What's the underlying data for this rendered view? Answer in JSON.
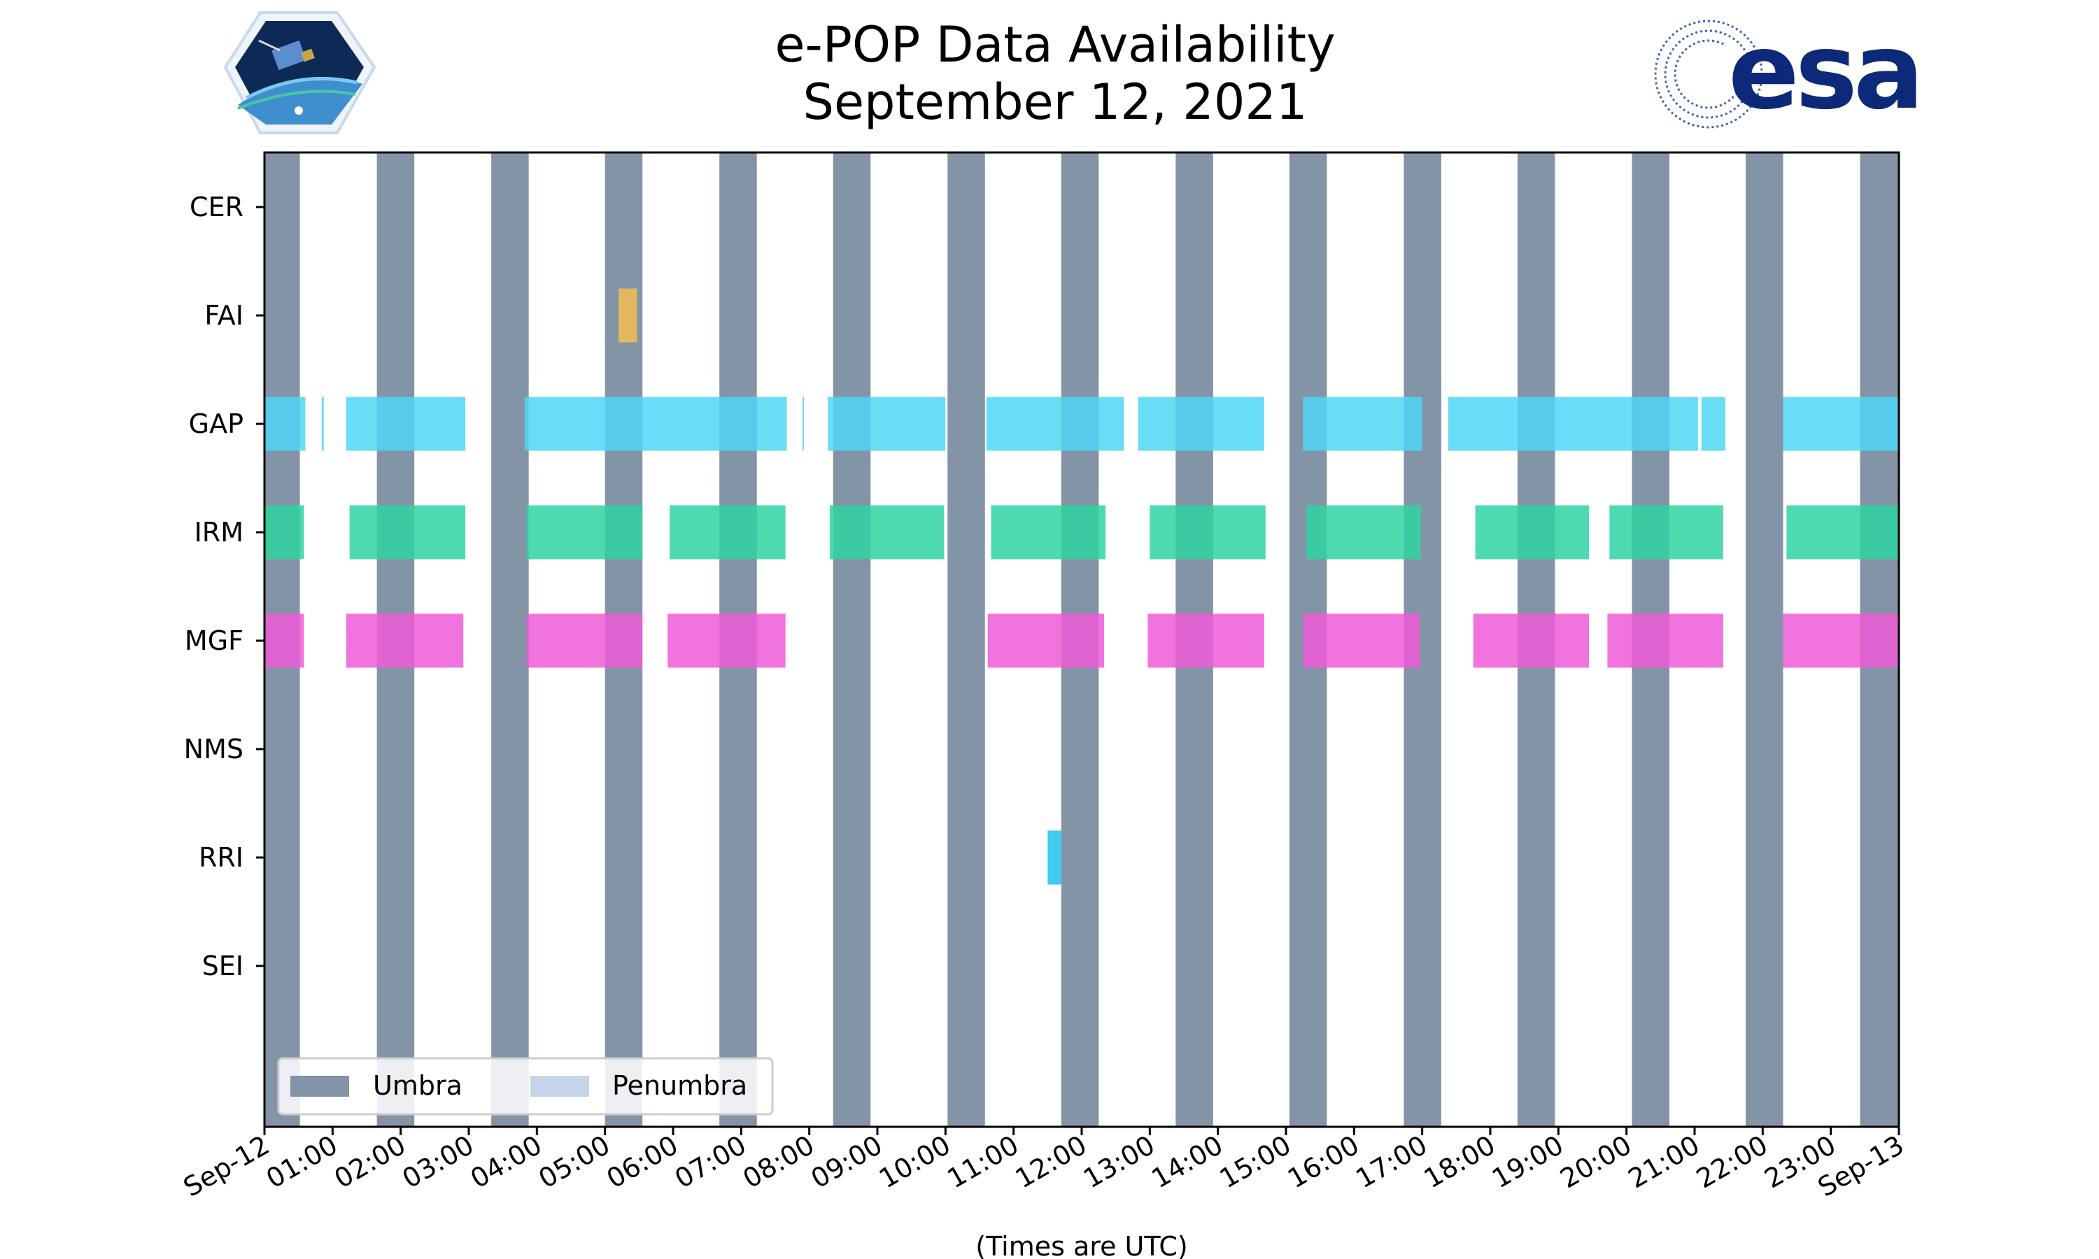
{
  "chart_data": {
    "type": "timeline",
    "title": "e-POP Data Availability",
    "subtitle": "September 12, 2021",
    "xlabel": "(Times are UTC)",
    "x_unit": "hours UTC",
    "xlim": [
      0,
      24
    ],
    "x_tick_labels": [
      "Sep-12",
      "01:00",
      "02:00",
      "03:00",
      "04:00",
      "05:00",
      "06:00",
      "07:00",
      "08:00",
      "09:00",
      "10:00",
      "11:00",
      "12:00",
      "13:00",
      "14:00",
      "15:00",
      "16:00",
      "17:00",
      "18:00",
      "19:00",
      "20:00",
      "21:00",
      "22:00",
      "23:00",
      "Sep-13"
    ],
    "instruments": [
      "CER",
      "FAI",
      "GAP",
      "IRM",
      "MGF",
      "NMS",
      "RRI",
      "SEI"
    ],
    "legend": {
      "placement": "lower-left",
      "entries": [
        {
          "label": "Umbra",
          "color": "#8494a7"
        },
        {
          "label": "Penumbra",
          "color": "#c5d4e6"
        }
      ]
    },
    "umbra_intervals": [
      [
        0.0,
        0.52
      ],
      [
        1.65,
        2.2
      ],
      [
        3.33,
        3.88
      ],
      [
        5.0,
        5.55
      ],
      [
        6.68,
        7.23
      ],
      [
        8.35,
        8.9
      ],
      [
        10.03,
        10.58
      ],
      [
        11.7,
        12.25
      ],
      [
        13.38,
        13.93
      ],
      [
        15.05,
        15.6
      ],
      [
        16.73,
        17.28
      ],
      [
        18.4,
        18.95
      ],
      [
        20.08,
        20.63
      ],
      [
        21.75,
        22.3
      ],
      [
        23.43,
        24.0
      ]
    ],
    "series": [
      {
        "name": "CER",
        "color": "#f7b731",
        "intervals": []
      },
      {
        "name": "FAI",
        "color": "#f2bd50",
        "intervals": [
          [
            5.2,
            5.47
          ]
        ]
      },
      {
        "name": "GAP",
        "color": "#4fd6f6",
        "intervals": [
          [
            0.0,
            0.6
          ],
          [
            0.84,
            0.87
          ],
          [
            1.2,
            2.95
          ],
          [
            3.82,
            7.67
          ],
          [
            7.9,
            7.92
          ],
          [
            8.27,
            10.0
          ],
          [
            10.6,
            12.62
          ],
          [
            12.83,
            14.68
          ],
          [
            15.25,
            17.0
          ],
          [
            17.38,
            21.05
          ],
          [
            21.1,
            21.45
          ],
          [
            22.3,
            24.0
          ]
        ]
      },
      {
        "name": "IRM",
        "color": "#2ed3a0",
        "intervals": [
          [
            0.0,
            0.58
          ],
          [
            1.25,
            2.95
          ],
          [
            3.85,
            5.55
          ],
          [
            5.95,
            7.65
          ],
          [
            8.3,
            9.98
          ],
          [
            10.67,
            12.35
          ],
          [
            13.0,
            14.7
          ],
          [
            15.3,
            16.98
          ],
          [
            17.78,
            19.45
          ],
          [
            19.75,
            21.42
          ],
          [
            22.35,
            24.0
          ]
        ]
      },
      {
        "name": "MGF",
        "color": "#ef5ad8",
        "intervals": [
          [
            0.0,
            0.58
          ],
          [
            1.2,
            2.92
          ],
          [
            3.85,
            5.55
          ],
          [
            5.92,
            7.65
          ],
          [
            10.62,
            12.33
          ],
          [
            12.97,
            14.68
          ],
          [
            15.25,
            16.97
          ],
          [
            17.75,
            19.45
          ],
          [
            19.72,
            21.42
          ],
          [
            22.3,
            24.0
          ]
        ]
      },
      {
        "name": "NMS",
        "color": "#999999",
        "intervals": []
      },
      {
        "name": "RRI",
        "color": "#1cc3ec",
        "intervals": [
          [
            11.5,
            11.7
          ]
        ]
      },
      {
        "name": "SEI",
        "color": "#999999",
        "intervals": []
      }
    ]
  },
  "logos": {
    "left": {
      "name": "CASSIOPE"
    },
    "right": {
      "name": "esa",
      "color": "#0d2a7a"
    }
  }
}
